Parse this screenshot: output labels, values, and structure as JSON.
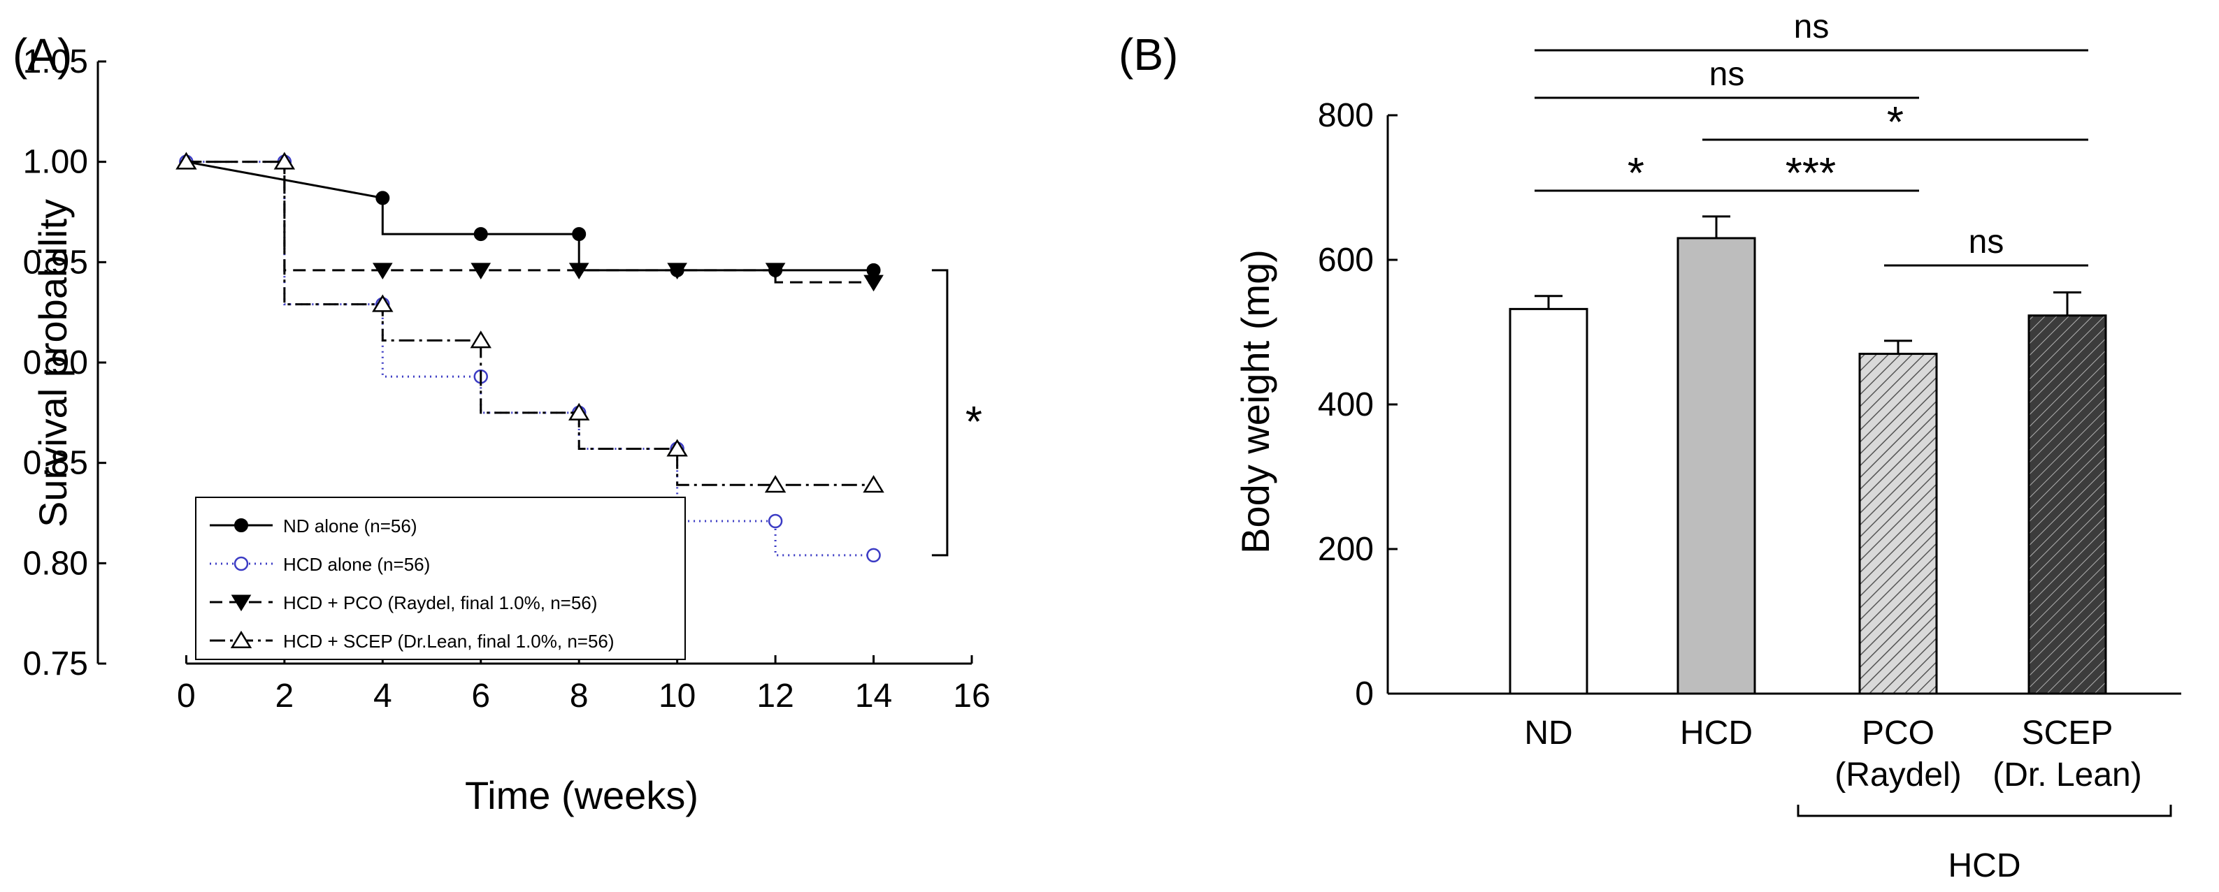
{
  "chart_data": [
    {
      "panel": "(A)",
      "type": "line",
      "xlabel": "Time (weeks)",
      "ylabel": "Survival probability",
      "xlim": [
        -1.8,
        16
      ],
      "ylim": [
        0.75,
        1.05
      ],
      "xticks": [
        "0",
        "2",
        "4",
        "6",
        "8",
        "10",
        "12",
        "14",
        "16"
      ],
      "yticks": [
        "0.75",
        "0.80",
        "0.85",
        "0.90",
        "0.95",
        "1.00",
        "1.05"
      ],
      "grid": false,
      "legend_position": "bottom-left",
      "series": [
        {
          "name": "ND alone (n=56)",
          "color": "#000000",
          "dash": "",
          "marker": "filled-circle",
          "steps": [
            [
              0,
              1.0
            ],
            [
              4,
              0.982
            ],
            [
              4,
              0.964
            ],
            [
              8,
              0.946
            ],
            [
              14,
              0.946
            ]
          ],
          "step_points": [
            [
              0,
              1.0
            ],
            [
              4,
              0.982
            ],
            [
              4,
              0.964
            ],
            [
              8,
              0.964
            ],
            [
              8,
              0.946
            ],
            [
              14,
              0.946
            ]
          ],
          "points": [
            [
              0,
              1.0
            ],
            [
              4,
              0.982
            ],
            [
              6,
              0.964
            ],
            [
              8,
              0.964
            ],
            [
              10,
              0.946
            ],
            [
              12,
              0.946
            ],
            [
              14,
              0.946
            ]
          ]
        },
        {
          "name": "HCD alone (n=56)",
          "color": "#3b3bc4",
          "dash": "2,6",
          "marker": "open-circle",
          "step_points": [
            [
              0,
              1.0
            ],
            [
              2,
              1.0
            ],
            [
              2,
              0.929
            ],
            [
              4,
              0.929
            ],
            [
              4,
              0.893
            ],
            [
              6,
              0.893
            ],
            [
              6,
              0.875
            ],
            [
              8,
              0.875
            ],
            [
              8,
              0.857
            ],
            [
              10,
              0.857
            ],
            [
              10,
              0.821
            ],
            [
              12,
              0.821
            ],
            [
              12,
              0.804
            ],
            [
              14,
              0.804
            ]
          ],
          "points": [
            [
              0,
              1.0
            ],
            [
              2,
              1.0
            ],
            [
              4,
              0.929
            ],
            [
              6,
              0.893
            ],
            [
              8,
              0.875
            ],
            [
              10,
              0.857
            ],
            [
              12,
              0.821
            ],
            [
              14,
              0.804
            ]
          ]
        },
        {
          "name": "HCD + PCO (Raydel, final 1.0%, n=56)",
          "color": "#000000",
          "dash": "18,10",
          "marker": "filled-down-triangle",
          "step_points": [
            [
              0,
              1.0
            ],
            [
              2,
              1.0
            ],
            [
              2,
              0.946
            ],
            [
              12,
              0.946
            ],
            [
              12,
              0.94
            ],
            [
              14,
              0.94
            ]
          ],
          "points": [
            [
              4,
              0.946
            ],
            [
              6,
              0.946
            ],
            [
              8,
              0.946
            ],
            [
              10,
              0.946
            ],
            [
              12,
              0.946
            ],
            [
              14,
              0.94
            ]
          ]
        },
        {
          "name": "HCD + SCEP (Dr.Lean, final 1.0%, n=56)",
          "color": "#000000",
          "dash": "22,7,4,7",
          "marker": "open-up-triangle",
          "step_points": [
            [
              0,
              1.0
            ],
            [
              2,
              1.0
            ],
            [
              2,
              0.929
            ],
            [
              4,
              0.929
            ],
            [
              4,
              0.911
            ],
            [
              6,
              0.911
            ],
            [
              6,
              0.875
            ],
            [
              8,
              0.875
            ],
            [
              8,
              0.857
            ],
            [
              10,
              0.857
            ],
            [
              10,
              0.839
            ],
            [
              14,
              0.839
            ]
          ],
          "points": [
            [
              0,
              1.0
            ],
            [
              2,
              1.0
            ],
            [
              4,
              0.929
            ],
            [
              6,
              0.911
            ],
            [
              8,
              0.875
            ],
            [
              10,
              0.857
            ],
            [
              12,
              0.839
            ],
            [
              14,
              0.839
            ]
          ]
        }
      ],
      "annotations": [
        {
          "text": "*",
          "between": [
            0.946,
            0.804
          ]
        }
      ]
    },
    {
      "panel": "(B)",
      "type": "bar",
      "ylabel": "Body weight (mg)",
      "ylim": [
        0,
        800
      ],
      "yticks": [
        "0",
        "200",
        "400",
        "600",
        "800"
      ],
      "categories": [
        {
          "line1": "ND",
          "line2": ""
        },
        {
          "line1": "HCD",
          "line2": ""
        },
        {
          "line1": "PCO",
          "line2": "(Raydel)"
        },
        {
          "line1": "SCEP",
          "line2": "(Dr. Lean)"
        }
      ],
      "values": [
        532,
        630,
        470,
        523
      ],
      "errors": [
        18,
        30,
        18,
        32
      ],
      "fills": [
        "#ffffff",
        "#bdbdbd",
        "hatch-light",
        "hatch-dark"
      ],
      "group_label": "HCD",
      "significance": [
        {
          "from": 0,
          "to": 1,
          "label": "*"
        },
        {
          "from": 1,
          "to": 2,
          "label": "***"
        },
        {
          "from": 2,
          "to": 3,
          "label": "ns"
        },
        {
          "from": 1,
          "to": 3,
          "label": "*"
        },
        {
          "from": 0,
          "to": 2,
          "label": "ns"
        },
        {
          "from": 0,
          "to": 3,
          "label": "ns"
        }
      ]
    }
  ]
}
